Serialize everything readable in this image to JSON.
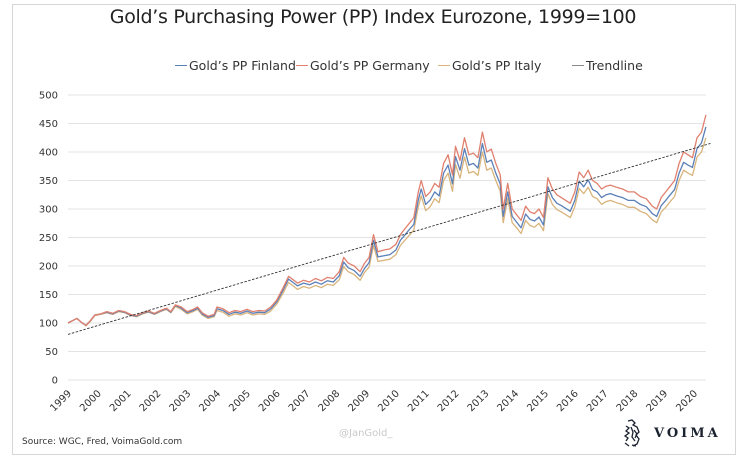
{
  "chart_data": {
    "type": "line",
    "title": "Gold’s Purchasing Power (PP) Index Eurozone, 1999=100",
    "xlabel": "",
    "ylabel": "",
    "ylim": [
      0,
      500
    ],
    "xlim": [
      1999,
      2020.6
    ],
    "yticks": [
      0,
      50,
      100,
      150,
      200,
      250,
      300,
      350,
      400,
      450,
      500
    ],
    "xticks": [
      "1999",
      "2000",
      "2001",
      "2002",
      "2003",
      "2004",
      "2005",
      "2006",
      "2007",
      "2008",
      "2009",
      "2010",
      "2011",
      "2012",
      "2013",
      "2014",
      "2015",
      "2016",
      "2017",
      "2018",
      "2019",
      "2020"
    ],
    "grid": true,
    "legend_position": "top",
    "x": [
      1999.0,
      1999.15,
      1999.3,
      1999.45,
      1999.6,
      1999.75,
      1999.9,
      2000.1,
      2000.3,
      2000.5,
      2000.7,
      2000.9,
      2001.1,
      2001.3,
      2001.5,
      2001.7,
      2001.9,
      2002.1,
      2002.3,
      2002.45,
      2002.6,
      2002.8,
      2003.0,
      2003.2,
      2003.35,
      2003.5,
      2003.7,
      2003.9,
      2004.0,
      2004.2,
      2004.4,
      2004.6,
      2004.8,
      2005.0,
      2005.2,
      2005.4,
      2005.6,
      2005.8,
      2006.0,
      2006.2,
      2006.4,
      2006.55,
      2006.7,
      2006.9,
      2007.1,
      2007.3,
      2007.5,
      2007.7,
      2007.9,
      2008.1,
      2008.25,
      2008.4,
      2008.6,
      2008.8,
      2008.95,
      2009.1,
      2009.25,
      2009.4,
      2009.6,
      2009.8,
      2010.0,
      2010.15,
      2010.3,
      2010.45,
      2010.6,
      2010.75,
      2010.85,
      2011.0,
      2011.15,
      2011.3,
      2011.45,
      2011.6,
      2011.75,
      2011.9,
      2012.0,
      2012.15,
      2012.3,
      2012.45,
      2012.6,
      2012.75,
      2012.9,
      2013.05,
      2013.2,
      2013.35,
      2013.5,
      2013.6,
      2013.75,
      2013.9,
      2014.05,
      2014.2,
      2014.35,
      2014.5,
      2014.65,
      2014.8,
      2014.95,
      2015.1,
      2015.25,
      2015.4,
      2015.55,
      2015.7,
      2015.85,
      2016.0,
      2016.15,
      2016.3,
      2016.45,
      2016.6,
      2016.75,
      2016.9,
      2017.05,
      2017.2,
      2017.4,
      2017.6,
      2017.8,
      2018.0,
      2018.2,
      2018.4,
      2018.6,
      2018.75,
      2018.9,
      2019.05,
      2019.2,
      2019.35,
      2019.5,
      2019.65,
      2019.8,
      2019.95,
      2020.1,
      2020.25,
      2020.4,
      2020.55
    ],
    "series": [
      {
        "name": "Gold’s PP Germany",
        "color": "#e0806e",
        "values": [
          100,
          104,
          108,
          101,
          96,
          104,
          114,
          116,
          120,
          117,
          122,
          120,
          115,
          113,
          118,
          121,
          117,
          122,
          126,
          120,
          132,
          128,
          120,
          124,
          128,
          118,
          112,
          115,
          128,
          125,
          118,
          122,
          120,
          124,
          120,
          122,
          121,
          128,
          140,
          160,
          182,
          176,
          170,
          175,
          172,
          178,
          174,
          180,
          178,
          190,
          215,
          205,
          200,
          190,
          205,
          215,
          255,
          225,
          228,
          230,
          238,
          255,
          265,
          275,
          285,
          330,
          350,
          322,
          330,
          345,
          338,
          380,
          395,
          360,
          410,
          385,
          425,
          395,
          398,
          390,
          435,
          400,
          405,
          380,
          360,
          300,
          345,
          300,
          290,
          280,
          305,
          295,
          292,
          300,
          285,
          355,
          335,
          325,
          320,
          315,
          310,
          330,
          365,
          355,
          368,
          350,
          345,
          335,
          340,
          342,
          338,
          335,
          330,
          330,
          322,
          318,
          305,
          300,
          320,
          330,
          340,
          350,
          380,
          400,
          395,
          390,
          425,
          435,
          465
        ]
      },
      {
        "name": "Gold’s PP Finland",
        "color": "#5b80b8",
        "values": [
          100,
          104,
          108,
          101,
          96,
          104,
          114,
          116,
          119,
          116,
          121,
          119,
          114,
          112,
          117,
          120,
          116,
          121,
          125,
          119,
          131,
          126,
          118,
          122,
          126,
          116,
          110,
          113,
          125,
          122,
          115,
          119,
          117,
          121,
          117,
          119,
          118,
          125,
          137,
          156,
          177,
          171,
          165,
          170,
          167,
          172,
          168,
          174,
          172,
          183,
          207,
          197,
          192,
          182,
          196,
          206,
          245,
          216,
          218,
          220,
          228,
          245,
          254,
          264,
          273,
          316,
          335,
          308,
          316,
          330,
          323,
          363,
          377,
          344,
          392,
          368,
          406,
          377,
          380,
          372,
          415,
          382,
          386,
          363,
          344,
          287,
          330,
          287,
          277,
          267,
          291,
          282,
          279,
          286,
          272,
          339,
          320,
          310,
          306,
          301,
          296,
          315,
          349,
          339,
          351,
          334,
          330,
          320,
          325,
          327,
          323,
          320,
          315,
          315,
          308,
          304,
          292,
          287,
          306,
          315,
          325,
          334,
          363,
          382,
          377,
          373,
          406,
          416,
          444
        ]
      },
      {
        "name": "Gold’s PP Italy",
        "color": "#d9b47c",
        "values": [
          100,
          104,
          108,
          101,
          95,
          103,
          113,
          115,
          118,
          115,
          120,
          118,
          113,
          111,
          116,
          119,
          115,
          120,
          124,
          118,
          129,
          124,
          116,
          120,
          124,
          114,
          108,
          111,
          122,
          119,
          112,
          116,
          114,
          118,
          114,
          116,
          115,
          121,
          133,
          151,
          171,
          165,
          159,
          164,
          161,
          166,
          162,
          168,
          166,
          176,
          199,
          190,
          185,
          175,
          189,
          198,
          236,
          208,
          210,
          212,
          220,
          236,
          245,
          254,
          263,
          304,
          323,
          297,
          304,
          318,
          311,
          350,
          363,
          331,
          378,
          354,
          391,
          363,
          366,
          359,
          400,
          368,
          372,
          350,
          331,
          276,
          318,
          276,
          267,
          257,
          280,
          271,
          268,
          275,
          262,
          327,
          308,
          299,
          295,
          290,
          285,
          304,
          336,
          327,
          338,
          322,
          318,
          308,
          313,
          315,
          311,
          308,
          303,
          303,
          296,
          292,
          281,
          276,
          295,
          303,
          313,
          322,
          350,
          368,
          363,
          359,
          391,
          400,
          425
        ]
      }
    ],
    "trendline": {
      "name": "Trendline",
      "color": "#333333",
      "start": {
        "x": 1999.0,
        "y": 80
      },
      "end": {
        "x": 2020.55,
        "y": 415
      }
    }
  },
  "legend": [
    {
      "label": "Gold’s PP Finland",
      "color": "#5b80b8"
    },
    {
      "label": "Gold’s PP Germany",
      "color": "#e0806e"
    },
    {
      "label": "Gold’s PP Italy",
      "color": "#d9b47c"
    },
    {
      "label": "Trendline",
      "color": "#8a8a8a"
    }
  ],
  "source": "Source: WGC, Fred, VoimaGold.com",
  "watermark": "@JanGold_",
  "logo": {
    "icon": "griffin-crest-icon",
    "text": "VOIMA"
  }
}
